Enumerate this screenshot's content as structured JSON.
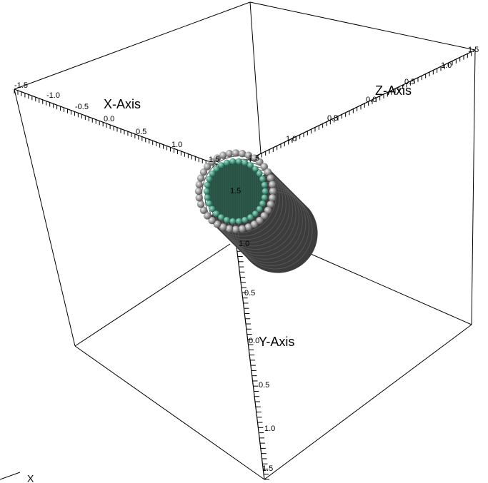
{
  "axes": {
    "x": {
      "label": "X-Axis",
      "ticks": [
        "-1.5",
        "-1.0",
        "-0.5",
        "0.0",
        "0.5",
        "1.0",
        "1.5"
      ]
    },
    "y": {
      "label": "Y-Axis",
      "ticks": [
        "1.5",
        "1.0",
        "0.5",
        "0.0",
        "0.5",
        "1.0",
        "1.5"
      ]
    },
    "z": {
      "label": "Z-Axis",
      "ticks": [
        "1.5",
        "1.0",
        "0.5",
        "0.0",
        "0.5",
        "1.0",
        "1.5"
      ]
    }
  },
  "triad": {
    "label": "X"
  }
}
